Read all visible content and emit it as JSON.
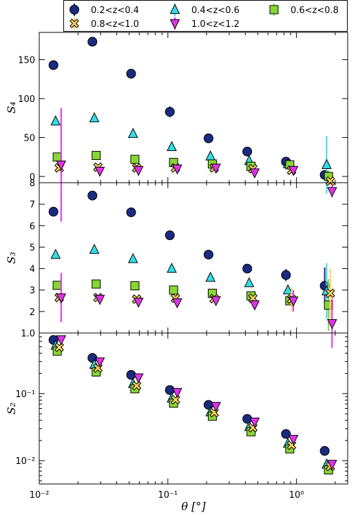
{
  "chart_data": {
    "type": "scatter",
    "xlabel": "θ [°]",
    "x_scale": "log",
    "xlim": [
      0.01,
      2.5
    ],
    "x_ticks": [
      {
        "value": 0.01,
        "label": "10⁻²"
      },
      {
        "value": 0.1,
        "label": "10⁻¹"
      },
      {
        "value": 1,
        "label": "10⁰"
      }
    ],
    "legend": {
      "placement": "top",
      "columns": 3
    },
    "series": [
      {
        "name": "0.2<z<0.4",
        "marker": "circle",
        "color": "#1a2a80",
        "error_color": "#1a2a80",
        "x": [
          0.0129,
          0.0259,
          0.0518,
          0.1036,
          0.2071,
          0.4142,
          0.8284,
          1.6569
        ]
      },
      {
        "name": "0.4<z<0.6",
        "marker": "triangle-up",
        "color": "#33dde6",
        "error_color": "#33dde6",
        "x": [
          0.0134,
          0.0268,
          0.0536,
          0.1072,
          0.2144,
          0.4288,
          0.8576,
          1.7152
        ]
      },
      {
        "name": "0.6<z<0.8",
        "marker": "square",
        "color": "#88d633",
        "error_color": "#88d633",
        "x": [
          0.0138,
          0.0277,
          0.0554,
          0.1108,
          0.2217,
          0.4433,
          0.8867,
          1.7734
        ]
      },
      {
        "name": "0.8<z<1.0",
        "marker": "x-diamond",
        "color": "#ffd35a",
        "error_color": "#ffd35a",
        "x": [
          0.0143,
          0.0286,
          0.0572,
          0.1145,
          0.229,
          0.458,
          0.9159,
          1.8318
        ]
      },
      {
        "name": "1.0<z<1.2",
        "marker": "triangle-down",
        "color": "#e033e6",
        "error_color": "#e033e6",
        "x": [
          0.0148,
          0.0296,
          0.0591,
          0.1182,
          0.2364,
          0.4728,
          0.9456,
          1.8912
        ]
      }
    ],
    "panels": [
      {
        "ylabel": "S₄",
        "y_scale": "linear",
        "ylim": [
          -8,
          185
        ],
        "y_ticks": [
          0,
          50,
          100,
          150
        ],
        "values": [
          [
            143,
            173,
            132,
            83,
            49,
            32,
            19,
            2
          ],
          [
            71,
            75,
            55,
            38,
            26,
            20,
            16,
            15
          ],
          [
            25,
            27,
            22,
            18,
            16,
            13,
            15,
            0
          ],
          [
            11,
            12,
            11,
            11,
            11,
            10,
            8,
            -6
          ],
          [
            15,
            7,
            8,
            10,
            11,
            5,
            8,
            -19
          ]
        ],
        "errors": [
          [
            2,
            5,
            6,
            7,
            2,
            2,
            2,
            2
          ],
          [
            2,
            2,
            2,
            2,
            2,
            2,
            2,
            37
          ],
          [
            2,
            2,
            2,
            2,
            2,
            2,
            2,
            8
          ],
          [
            2,
            2,
            2,
            2,
            2,
            2,
            2,
            5
          ],
          [
            73,
            2,
            2,
            2,
            2,
            2,
            2,
            8
          ]
        ]
      },
      {
        "ylabel": "S₃",
        "y_scale": "linear",
        "ylim": [
          1,
          8
        ],
        "y_ticks": [
          1,
          2,
          3,
          4,
          5,
          6,
          7,
          8
        ],
        "y_tick_labels": [
          "1.0",
          "2",
          "3",
          "4",
          "5",
          "6",
          "7",
          "8"
        ],
        "values": [
          [
            6.65,
            7.4,
            6.62,
            5.55,
            4.65,
            4.0,
            3.7,
            3.2
          ],
          [
            4.65,
            4.88,
            4.45,
            4.0,
            3.58,
            3.33,
            3.0,
            2.95
          ],
          [
            3.22,
            3.28,
            3.2,
            3.0,
            2.85,
            2.73,
            2.5,
            2.3
          ],
          [
            2.65,
            2.65,
            2.58,
            2.62,
            2.6,
            2.62,
            2.58,
            2.85
          ],
          [
            2.65,
            2.58,
            2.45,
            2.42,
            2.52,
            2.32,
            2.5,
            1.45
          ]
        ],
        "errors": [
          [
            0.05,
            0.05,
            0.05,
            0.05,
            0.05,
            0.05,
            0.28,
            0.85
          ],
          [
            0.05,
            0.05,
            0.05,
            0.05,
            0.05,
            0.05,
            0.1,
            1.3
          ],
          [
            0.05,
            0.05,
            0.05,
            0.05,
            0.05,
            0.05,
            0.1,
            1.2
          ],
          [
            0.05,
            0.05,
            0.05,
            0.05,
            0.05,
            0.05,
            0.55,
            1.15
          ],
          [
            1.15,
            0.25,
            0.05,
            0.05,
            0.05,
            0.2,
            0.5,
            1.15
          ]
        ]
      },
      {
        "ylabel": "S₂",
        "y_scale": "log",
        "ylim": [
          0.0045,
          0.8
        ],
        "y_ticks": [
          0.01,
          0.1
        ],
        "y_tick_labels": [
          "10⁻²",
          "10⁻¹"
        ],
        "values": [
          [
            0.63,
            0.34,
            0.19,
            0.113,
            0.068,
            0.042,
            0.025,
            0.014
          ],
          [
            0.52,
            0.27,
            0.14,
            0.085,
            0.053,
            0.032,
            0.018,
            0.0088
          ],
          [
            0.43,
            0.21,
            0.118,
            0.072,
            0.046,
            0.027,
            0.015,
            0.0073
          ],
          [
            0.49,
            0.24,
            0.131,
            0.081,
            0.052,
            0.031,
            0.017,
            0.0082
          ],
          [
            0.64,
            0.3,
            0.173,
            0.105,
            0.065,
            0.038,
            0.021,
            0.0089
          ]
        ]
      }
    ]
  }
}
